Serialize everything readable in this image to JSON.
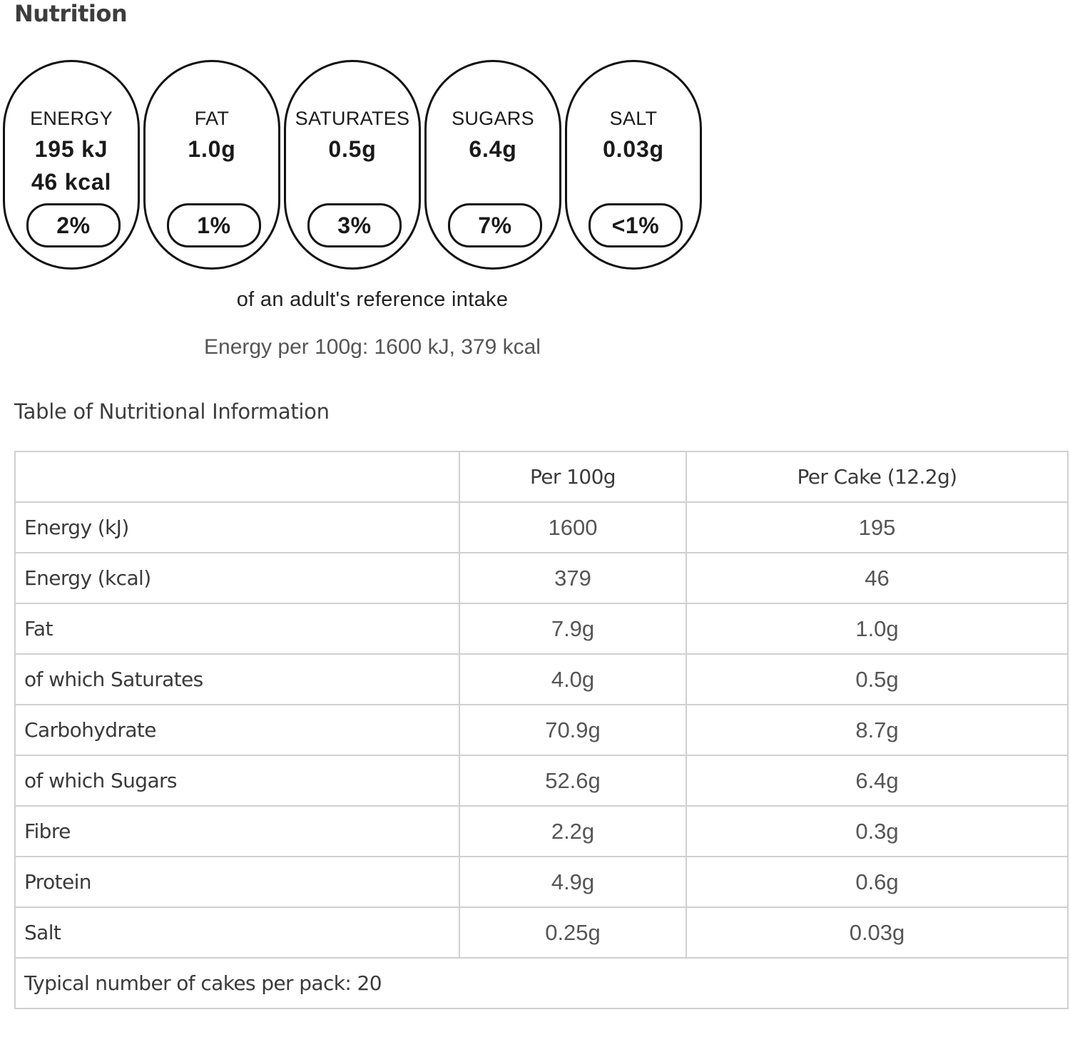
{
  "heading": "Nutrition",
  "traffic_lights": [
    {
      "label": "ENERGY",
      "value": "195 kJ",
      "value2": "46 kcal",
      "percent": "2%"
    },
    {
      "label": "FAT",
      "value": "1.0g",
      "value2": "",
      "percent": "1%"
    },
    {
      "label": "SATURATES",
      "value": "0.5g",
      "value2": "",
      "percent": "3%"
    },
    {
      "label": "SUGARS",
      "value": "6.4g",
      "value2": "",
      "percent": "7%"
    },
    {
      "label": "SALT",
      "value": "0.03g",
      "value2": "",
      "percent": "<1%"
    }
  ],
  "reference_intake_text": "of an adult's reference intake",
  "energy_per_100g_text": "Energy per 100g: 1600 kJ, 379 kcal",
  "table_title": "Table of Nutritional Information",
  "table": {
    "headers": [
      "",
      "Per 100g",
      "Per Cake (12.2g)"
    ],
    "rows": [
      [
        "Energy (kJ)",
        "1600",
        "195"
      ],
      [
        "Energy (kcal)",
        "379",
        "46"
      ],
      [
        "Fat",
        "7.9g",
        "1.0g"
      ],
      [
        "of which Saturates",
        "4.0g",
        "0.5g"
      ],
      [
        "Carbohydrate",
        "70.9g",
        "8.7g"
      ],
      [
        "of which Sugars",
        "52.6g",
        "6.4g"
      ],
      [
        "Fibre",
        "2.2g",
        "0.3g"
      ],
      [
        "Protein",
        "4.9g",
        "0.6g"
      ],
      [
        "Salt",
        "0.25g",
        "0.03g"
      ]
    ],
    "footer": "Typical number of cakes per pack: 20"
  }
}
